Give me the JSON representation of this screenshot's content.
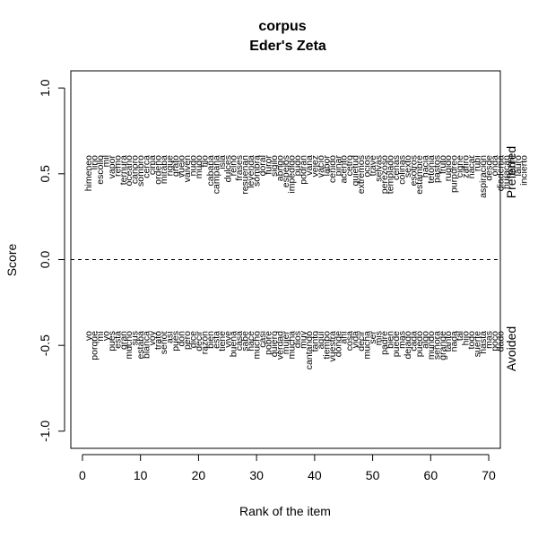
{
  "chart_data": {
    "type": "scatter",
    "title": "corpus",
    "subtitle": "Eder's Zeta",
    "xlabel": "Rank of the item",
    "ylabel": "Score",
    "xlim": [
      -2,
      72
    ],
    "ylim": [
      -1.1,
      1.1
    ],
    "x_ticks": [
      0,
      10,
      20,
      30,
      40,
      50,
      60,
      70
    ],
    "y_ticks": [
      -1.0,
      -0.5,
      0.0,
      0.5,
      1.0
    ],
    "y_tick_labels": [
      "-1.0",
      "-0.5",
      "0.0",
      "0.5",
      "1.0"
    ],
    "reference_line": {
      "y": 0.0,
      "style": "dashed"
    },
    "grid": false,
    "legend": "none",
    "group_labels": {
      "preferred": "Preferred",
      "avoided": "Avoided"
    },
    "preferred_words": [
      "himeneo",
      "lirio",
      "escollo",
      "mil",
      "vapor",
      "remo",
      "ternura",
      "océano",
      "canoro",
      "sombro",
      "cerca",
      "cima",
      "ordeño",
      "miraba",
      "rigue",
      "grafo",
      "vuelo",
      "vaivén",
      "nudo",
      "mudo",
      "filo",
      "cabaña",
      "campaña",
      "isla",
      "dulces",
      "reino",
      "frases",
      "resuenan",
      "leyenda",
      "sombra",
      "doral",
      "furor",
      "sigilo",
      "abrigo",
      "espejos",
      "impedido",
      "pudo",
      "podrán",
      "vana",
      "vejez",
      "vacío",
      "labor",
      "ceñido",
      "pinar",
      "acento",
      "cetro",
      "quietud",
      "extremos",
      "ocios",
      "trave",
      "selvas",
      "perezoso",
      "templado",
      "cenas",
      "colinas",
      "sexto",
      "esotros",
      "estambre",
      "hacia",
      "tetonia",
      "pastos",
      "fruto",
      "rugido",
      "purpúreo",
      "cigne",
      "zafiro",
      "nácar",
      "rubí",
      "aspiración",
      "desde",
      "onda",
      "diadema",
      "huracán",
      "fabril",
      "lauro",
      "incierto"
    ],
    "avoided_words": [
      "yo",
      "porque",
      "mí",
      "yo",
      "pues",
      "está",
      "gran",
      "mucho",
      "sus",
      "estaba",
      "blanca",
      "voy",
      "trato",
      "señor",
      "así",
      "pues",
      "don",
      "pero",
      "dice",
      "decir",
      "razón",
      "bien",
      "esta",
      "tiene",
      "vive",
      "buena",
      "casa",
      "sabe",
      "hace",
      "mucho",
      "casi",
      "pobre",
      "quiero",
      "verdad",
      "mujer",
      "mucha",
      "dios",
      "muy",
      "cantando",
      "tanto",
      "aquí",
      "tiempo",
      "vuestra",
      "dónde",
      "ahí",
      "cosa",
      "vida",
      "decir",
      "mucha",
      "ser",
      "mis",
      "padre",
      "bien",
      "puede",
      "mas",
      "dejado",
      "cada",
      "puedo",
      "algo",
      "mundo",
      "señora",
      "grande",
      "tanto",
      "nada",
      "tal",
      "hijo",
      "todo",
      "suerte",
      "hasta",
      "mas",
      "poco",
      "dado"
    ]
  }
}
